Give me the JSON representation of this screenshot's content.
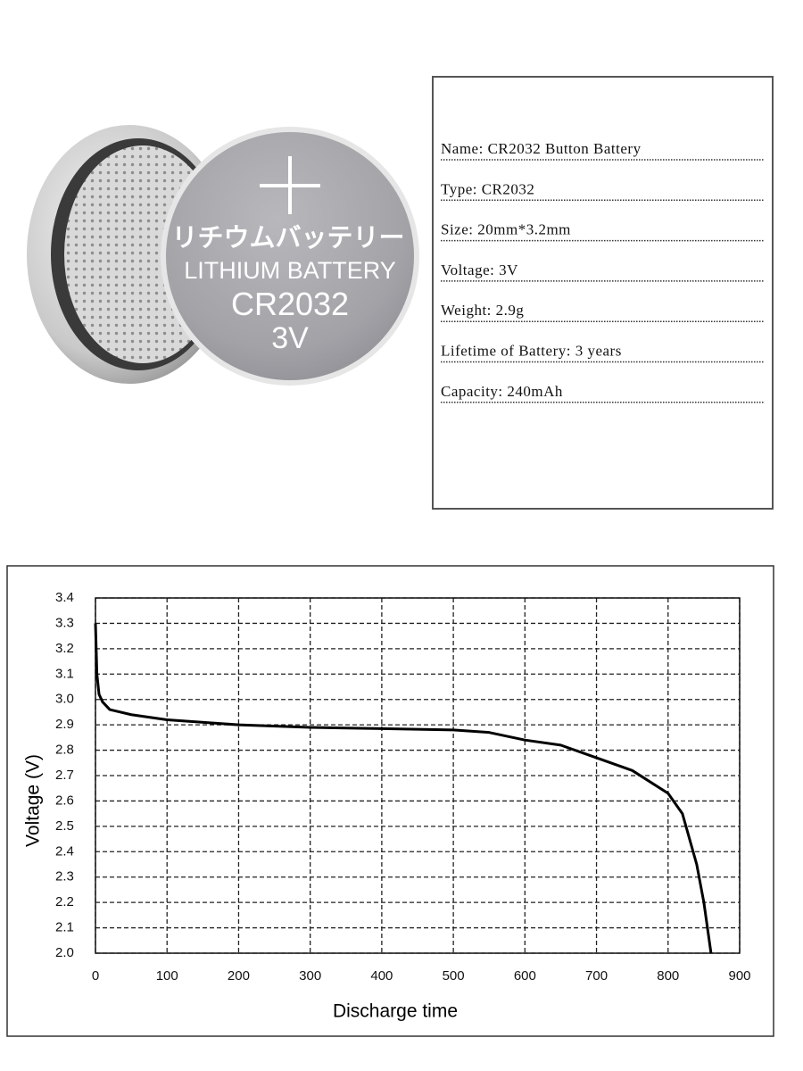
{
  "battery": {
    "japanese": "リチウムバッテリー",
    "line1": "LITHIUM BATTERY",
    "model": "CR2032",
    "voltage": "3V"
  },
  "specs": [
    "Name: CR2032 Button Battery",
    "Type: CR2032",
    "Size: 20mm*3.2mm",
    "Voltage: 3V",
    "Weight: 2.9g",
    "Lifetime of Battery: 3 years",
    "Capacity: 240mAh"
  ],
  "chart_data": {
    "type": "line",
    "xlabel": "Discharge time",
    "ylabel": "Voltage (V)",
    "x": [
      0,
      2,
      5,
      10,
      20,
      50,
      100,
      200,
      300,
      400,
      500,
      550,
      600,
      650,
      700,
      750,
      800,
      820,
      840,
      850,
      860
    ],
    "series": [
      {
        "color": "#000000",
        "values": [
          3.3,
          3.1,
          3.02,
          2.99,
          2.96,
          2.94,
          2.92,
          2.9,
          2.89,
          2.885,
          2.88,
          2.87,
          2.84,
          2.82,
          2.77,
          2.72,
          2.63,
          2.55,
          2.35,
          2.2,
          2.0
        ]
      }
    ],
    "xlim": [
      0,
      900
    ],
    "ylim": [
      2.0,
      3.4
    ],
    "xticks": [
      0,
      100,
      200,
      300,
      400,
      500,
      600,
      700,
      800,
      900
    ],
    "yticks": [
      {
        "value": 2.0,
        "label": "2.0"
      },
      2.1,
      2.2,
      2.3,
      2.4,
      2.5,
      2.6,
      2.7,
      2.8,
      2.9,
      {
        "value": 3.0,
        "label": "3.0"
      },
      3.1,
      3.2,
      3.3,
      3.4
    ],
    "grid": true
  }
}
